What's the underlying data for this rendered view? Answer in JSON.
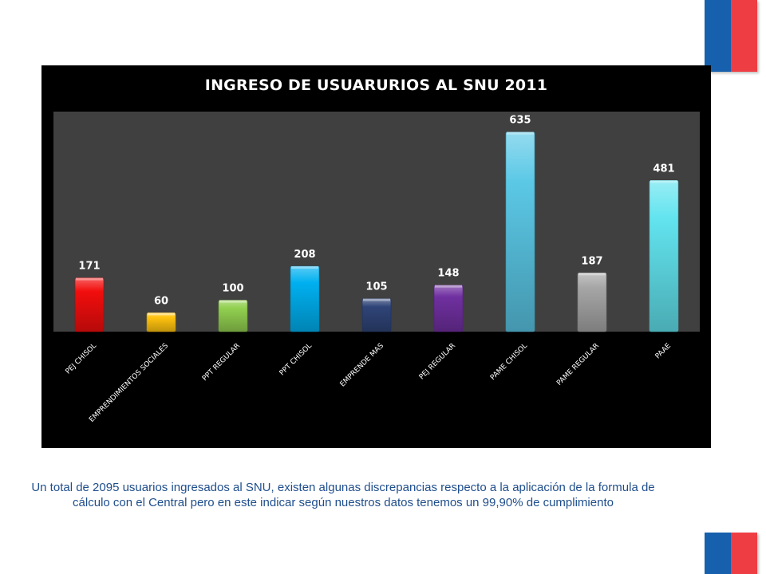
{
  "chart_data": {
    "type": "bar",
    "title": "INGRESO DE USUARURIOS AL SNU 2011",
    "categories": [
      "PEJ CHISOL",
      "EMPRENDIMIENTOS SOCIALES",
      "PPT REGULAR",
      "PPT CHISOL",
      "EMPRENDE MAS",
      "PEJ REGULAR",
      "PAME CHISOL",
      "PAME REGULAR",
      "PAAE"
    ],
    "values": [
      171,
      60,
      100,
      208,
      105,
      148,
      635,
      187,
      481
    ],
    "colors": [
      "#f20d0d",
      "#ffc20e",
      "#92d050",
      "#00b0f0",
      "#2f4477",
      "#7030a0",
      "#5bc8e6",
      "#a6a6a6",
      "#62e4ef"
    ],
    "xlabel": "",
    "ylabel": "",
    "ylim": [
      0,
      700
    ],
    "grid": false,
    "legend": "none",
    "data_labels": true
  },
  "caption": "Un total de 2095 usuarios ingresados al SNU, existen algunas discrepancias respecto a la aplicación de la formula de cálculo con el Central pero en este indicar según nuestros datos tenemos un 99,90% de cumplimiento"
}
